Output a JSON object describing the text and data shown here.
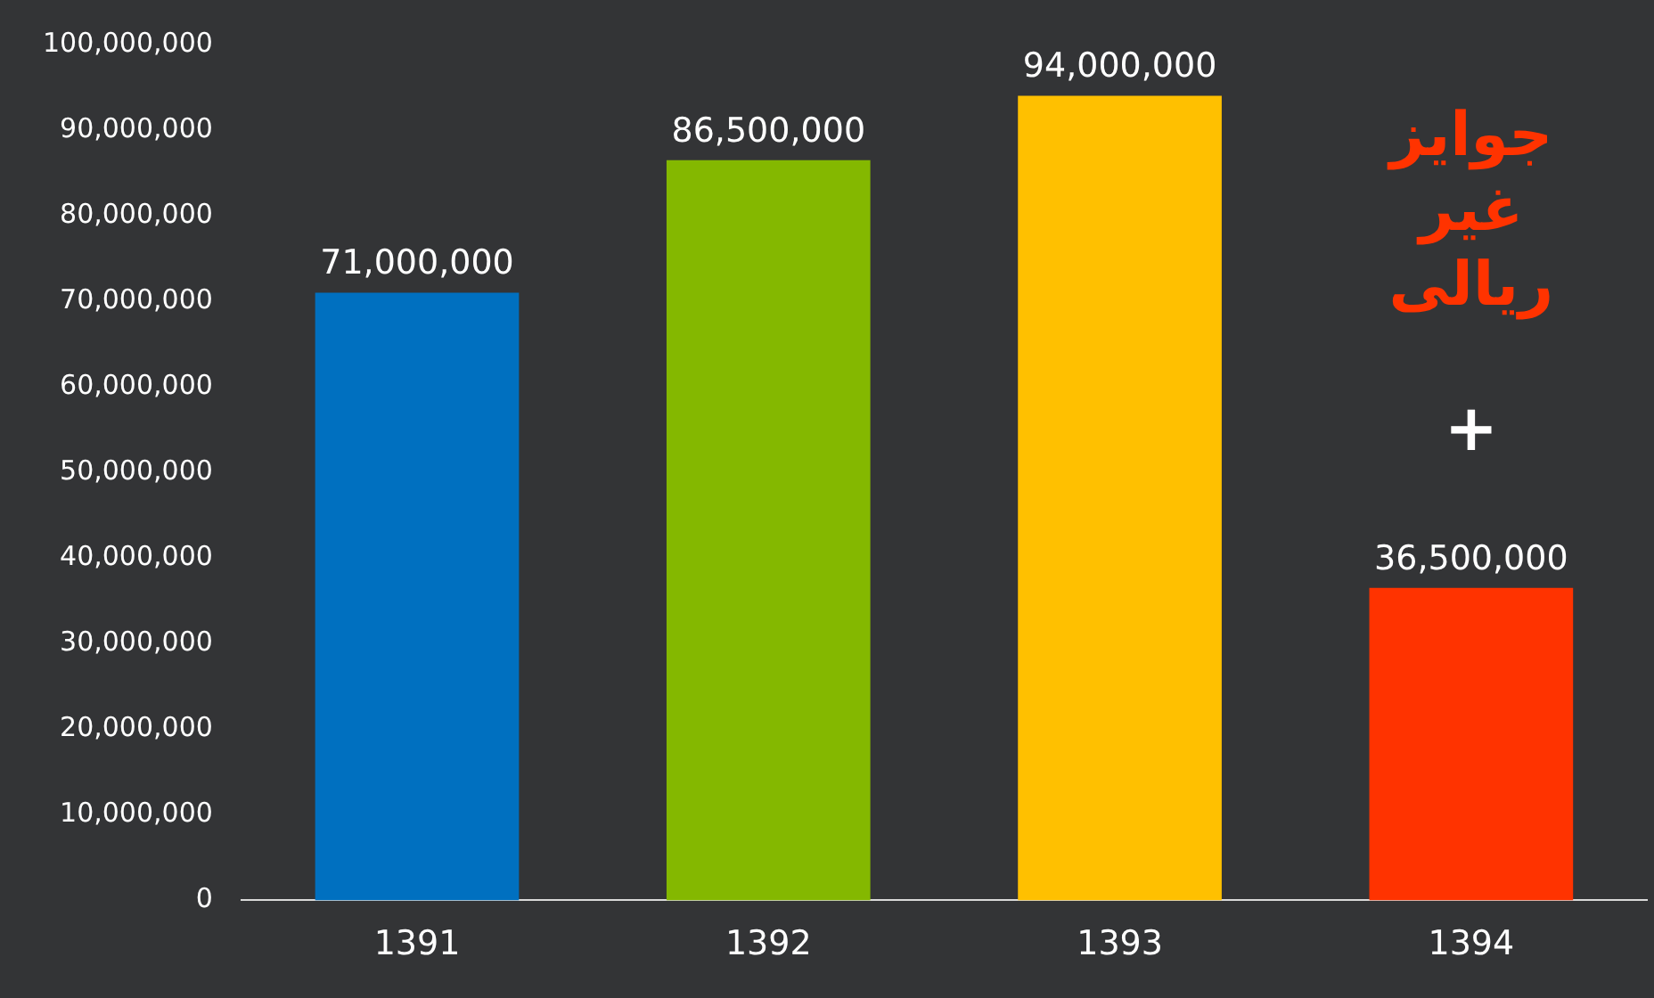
{
  "chart_data": {
    "type": "bar",
    "categories": [
      "1391",
      "1392",
      "1393",
      "1394"
    ],
    "values": [
      71000000,
      86500000,
      94000000,
      36500000
    ],
    "value_labels": [
      "71,000,000",
      "86,500,000",
      "94,000,000",
      "36,500,000"
    ],
    "colors": [
      "#0070c0",
      "#84b800",
      "#ffc000",
      "#ff3300"
    ],
    "ylim": [
      0,
      100000000
    ],
    "yticks": [
      0,
      {
        "value": 10000000,
        "label": "10,000,000"
      },
      {
        "value": 20000000,
        "label": "20,000,000"
      },
      {
        "value": 30000000,
        "label": "30,000,000"
      },
      {
        "value": 40000000,
        "label": "40,000,000"
      },
      {
        "value": 50000000,
        "label": "50,000,000"
      },
      {
        "value": 60000000,
        "label": "60,000,000"
      },
      {
        "value": 70000000,
        "label": "70,000,000"
      },
      {
        "value": 80000000,
        "label": "80,000,000"
      },
      {
        "value": 90000000,
        "label": "90,000,000"
      },
      {
        "value": 100000000,
        "label": "100,000,000"
      }
    ],
    "grid": false,
    "legend": false,
    "annotations": [
      "جوایز غیر ریالی",
      "+"
    ]
  }
}
